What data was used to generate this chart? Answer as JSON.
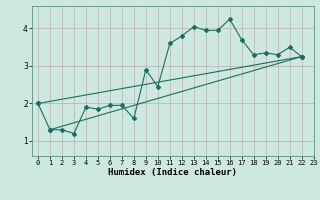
{
  "xlabel": "Humidex (Indice chaleur)",
  "background_color": "#cce8e0",
  "grid_color": "#c0b8b8",
  "line_color": "#1a6e60",
  "xlim": [
    -0.5,
    23
  ],
  "ylim": [
    0.6,
    4.6
  ],
  "xticks": [
    0,
    1,
    2,
    3,
    4,
    5,
    6,
    7,
    8,
    9,
    10,
    11,
    12,
    13,
    14,
    15,
    16,
    17,
    18,
    19,
    20,
    21,
    22,
    23
  ],
  "yticks": [
    1,
    2,
    3,
    4
  ],
  "series": [
    [
      0,
      2.0
    ],
    [
      1,
      1.3
    ],
    [
      2,
      1.3
    ],
    [
      3,
      1.2
    ],
    [
      4,
      1.9
    ],
    [
      5,
      1.85
    ],
    [
      6,
      1.95
    ],
    [
      7,
      1.95
    ],
    [
      8,
      1.6
    ],
    [
      9,
      2.9
    ],
    [
      10,
      2.45
    ],
    [
      11,
      3.6
    ],
    [
      12,
      3.8
    ],
    [
      13,
      4.05
    ],
    [
      14,
      3.95
    ],
    [
      15,
      3.95
    ],
    [
      16,
      4.25
    ],
    [
      17,
      3.7
    ],
    [
      18,
      3.3
    ],
    [
      19,
      3.35
    ],
    [
      20,
      3.3
    ],
    [
      21,
      3.5
    ],
    [
      22,
      3.25
    ]
  ],
  "line2": [
    [
      0,
      2.0
    ],
    [
      22,
      3.25
    ]
  ],
  "line3": [
    [
      1,
      1.3
    ],
    [
      22,
      3.25
    ]
  ],
  "marker_size": 2.0,
  "line_width": 0.8,
  "xlabel_fontsize": 6.5,
  "tick_fontsize": 5.0
}
